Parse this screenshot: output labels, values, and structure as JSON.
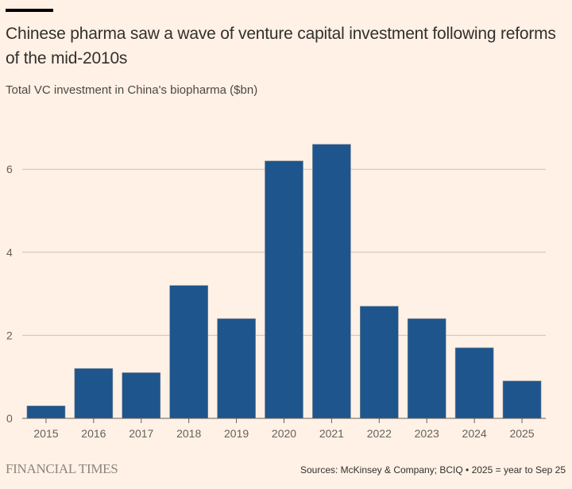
{
  "header": {
    "title": "Chinese pharma saw a wave of venture capital investment following reforms of the mid-2010s",
    "subtitle": "Total VC investment in China's biopharma ($bn)"
  },
  "footer": {
    "brand": "FINANCIAL TIMES",
    "source": "Sources: McKinsey & Company; BCIQ • 2025 = year to Sep 25"
  },
  "colors": {
    "background": "#fff1e5",
    "bar": "#1e558c",
    "grid": "#ccc1b7",
    "axis": "#66605c"
  },
  "chart_data": {
    "type": "bar",
    "title": "Chinese pharma saw a wave of venture capital investment following reforms of the mid-2010s",
    "subtitle": "Total VC investment in China's biopharma ($bn)",
    "xlabel": "",
    "ylabel": "",
    "categories": [
      "2015",
      "2016",
      "2017",
      "2018",
      "2019",
      "2020",
      "2021",
      "2022",
      "2023",
      "2024",
      "2025"
    ],
    "values": [
      0.3,
      1.2,
      1.1,
      3.2,
      2.4,
      6.2,
      6.6,
      2.7,
      2.4,
      1.7,
      0.9
    ],
    "ylim": [
      0,
      7
    ],
    "yticks": [
      0,
      2,
      4,
      6
    ],
    "grid": true,
    "legend": "none"
  }
}
